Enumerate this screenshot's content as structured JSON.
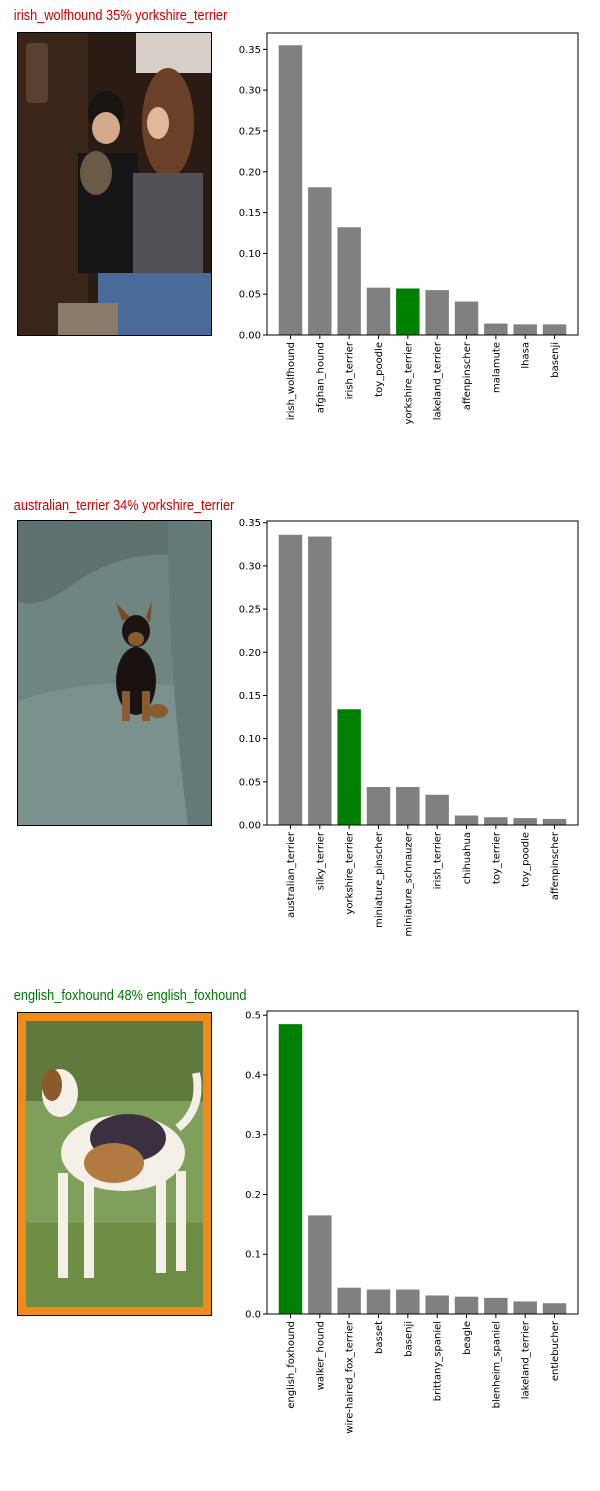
{
  "panels": [
    {
      "title": "irish_wolfhound 35% yorkshire_terrier",
      "title_color": "#cc0000",
      "image": "people-holding-small-dog-photo",
      "chart_data": {
        "type": "bar",
        "categories": [
          "irish_wolfhound",
          "afghan_hound",
          "irish_terrier",
          "toy_poodle",
          "yorkshire_terrier",
          "lakeland_terrier",
          "affenpinscher",
          "malamute",
          "lhasa",
          "basenji"
        ],
        "values": [
          0.355,
          0.181,
          0.132,
          0.058,
          0.057,
          0.055,
          0.041,
          0.014,
          0.013,
          0.013
        ],
        "highlight_index": 4,
        "bar_color": "#808080",
        "highlight_color": "#008000",
        "ylim": [
          0,
          0.37
        ],
        "yticks": [
          "0.00",
          "0.05",
          "0.10",
          "0.15",
          "0.20",
          "0.25",
          "0.30",
          "0.35"
        ],
        "ytick_values": [
          0,
          0.05,
          0.1,
          0.15,
          0.2,
          0.25,
          0.3,
          0.35
        ],
        "title": "",
        "xlabel": "",
        "ylabel": ""
      }
    },
    {
      "title": "australian_terrier 34% yorkshire_terrier",
      "title_color": "#cc0000",
      "image": "puppy-on-sofa-photo",
      "chart_data": {
        "type": "bar",
        "categories": [
          "australian_terrier",
          "silky_terrier",
          "yorkshire_terrier",
          "miniature_pinscher",
          "miniature_schnauzer",
          "irish_terrier",
          "chihuahua",
          "toy_terrier",
          "toy_poodle",
          "affenpinscher"
        ],
        "values": [
          0.336,
          0.334,
          0.134,
          0.044,
          0.044,
          0.035,
          0.011,
          0.009,
          0.008,
          0.007
        ],
        "highlight_index": 2,
        "bar_color": "#808080",
        "highlight_color": "#008000",
        "ylim": [
          0,
          0.352
        ],
        "yticks": [
          "0.00",
          "0.05",
          "0.10",
          "0.15",
          "0.20",
          "0.25",
          "0.30",
          "0.35"
        ],
        "ytick_values": [
          0,
          0.05,
          0.1,
          0.15,
          0.2,
          0.25,
          0.3,
          0.35
        ],
        "title": "",
        "xlabel": "",
        "ylabel": ""
      }
    },
    {
      "title": "english_foxhound 48% english_foxhound",
      "title_color": "#007700",
      "image": "foxhound-stamp-photo",
      "chart_data": {
        "type": "bar",
        "categories": [
          "english_foxhound",
          "walker_hound",
          "wire-haired_fox_terrier",
          "basset",
          "basenji",
          "brittany_spaniel",
          "beagle",
          "blenheim_spaniel",
          "lakeland_terrier",
          "entlebucher"
        ],
        "values": [
          0.485,
          0.165,
          0.044,
          0.041,
          0.041,
          0.031,
          0.029,
          0.027,
          0.021,
          0.018
        ],
        "highlight_index": 0,
        "bar_color": "#808080",
        "highlight_color": "#008000",
        "ylim": [
          0,
          0.507
        ],
        "yticks": [
          "0.0",
          "0.1",
          "0.2",
          "0.3",
          "0.4",
          "0.5"
        ],
        "ytick_values": [
          0,
          0.1,
          0.2,
          0.3,
          0.4,
          0.5
        ],
        "title": "",
        "xlabel": "",
        "ylabel": ""
      }
    }
  ]
}
